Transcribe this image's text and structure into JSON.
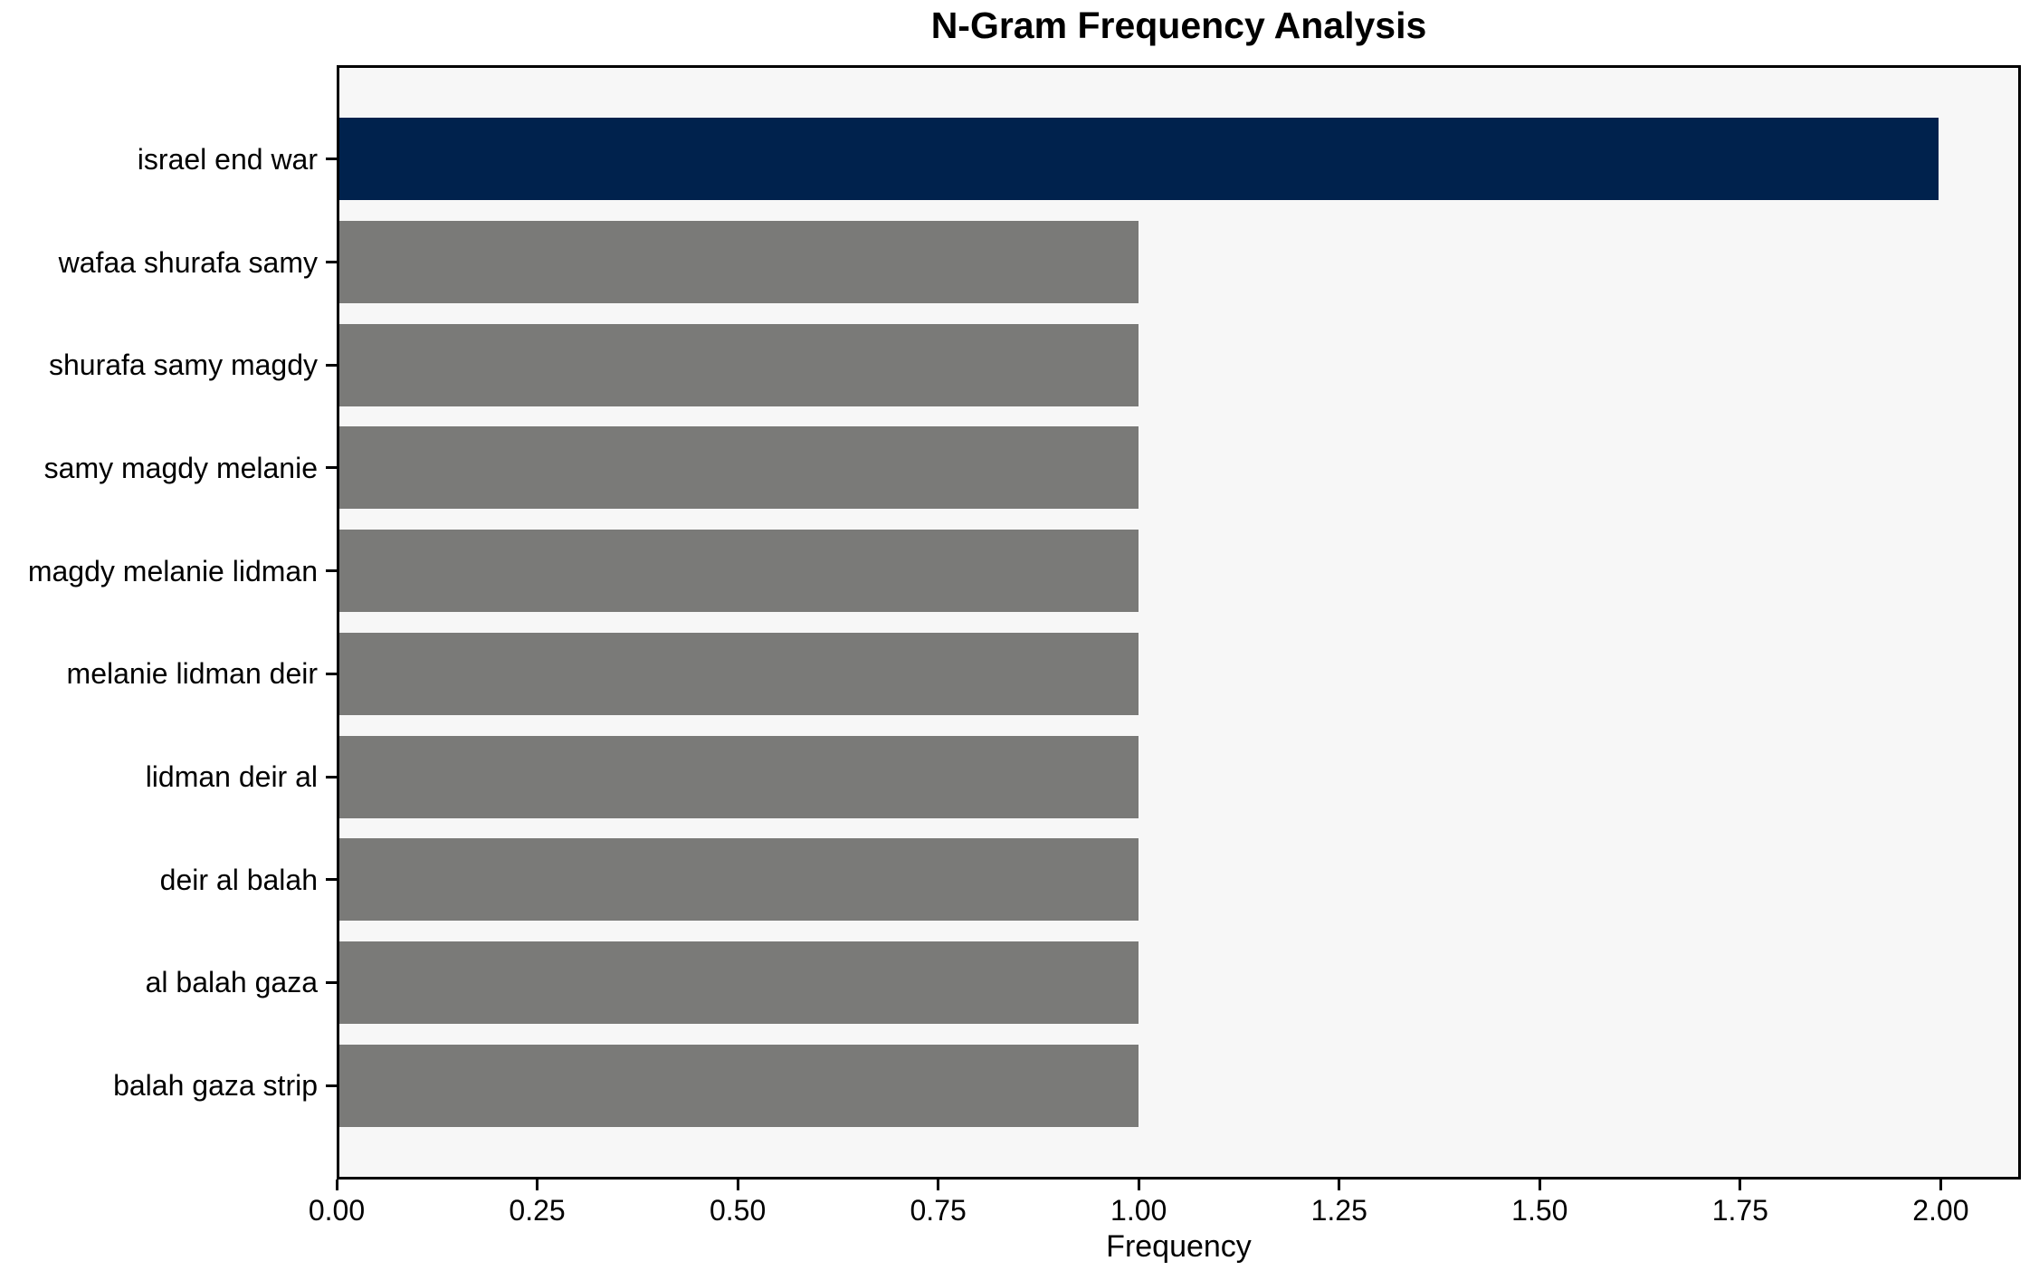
{
  "chart_data": {
    "type": "bar",
    "orientation": "horizontal",
    "title": "N-Gram Frequency Analysis",
    "xlabel": "Frequency",
    "ylabel": "",
    "categories": [
      "israel end war",
      "wafaa shurafa samy",
      "shurafa samy magdy",
      "samy magdy melanie",
      "magdy melanie lidman",
      "melanie lidman deir",
      "lidman deir al",
      "deir al balah",
      "al balah gaza",
      "balah gaza strip"
    ],
    "values": [
      2,
      1,
      1,
      1,
      1,
      1,
      1,
      1,
      1,
      1
    ],
    "bar_colors": [
      "#00224d",
      "#7a7a78",
      "#7a7a78",
      "#7a7a78",
      "#7a7a78",
      "#7a7a78",
      "#7a7a78",
      "#7a7a78",
      "#7a7a78",
      "#7a7a78"
    ],
    "xlim": [
      0,
      2.1
    ],
    "xticks": [
      0,
      0.25,
      0.5,
      0.75,
      1,
      1.25,
      1.5,
      1.75,
      2
    ],
    "xtick_labels": [
      "0.00",
      "0.25",
      "0.50",
      "0.75",
      "1.00",
      "1.25",
      "1.50",
      "1.75",
      "2.00"
    ],
    "grid": false,
    "legend": null,
    "colors": {
      "highlight_bar": "#00224d",
      "default_bar": "#7a7a78",
      "plot_background": "#f7f7f7",
      "figure_background": "#ffffff",
      "spine": "#000000",
      "text": "#000000"
    }
  }
}
